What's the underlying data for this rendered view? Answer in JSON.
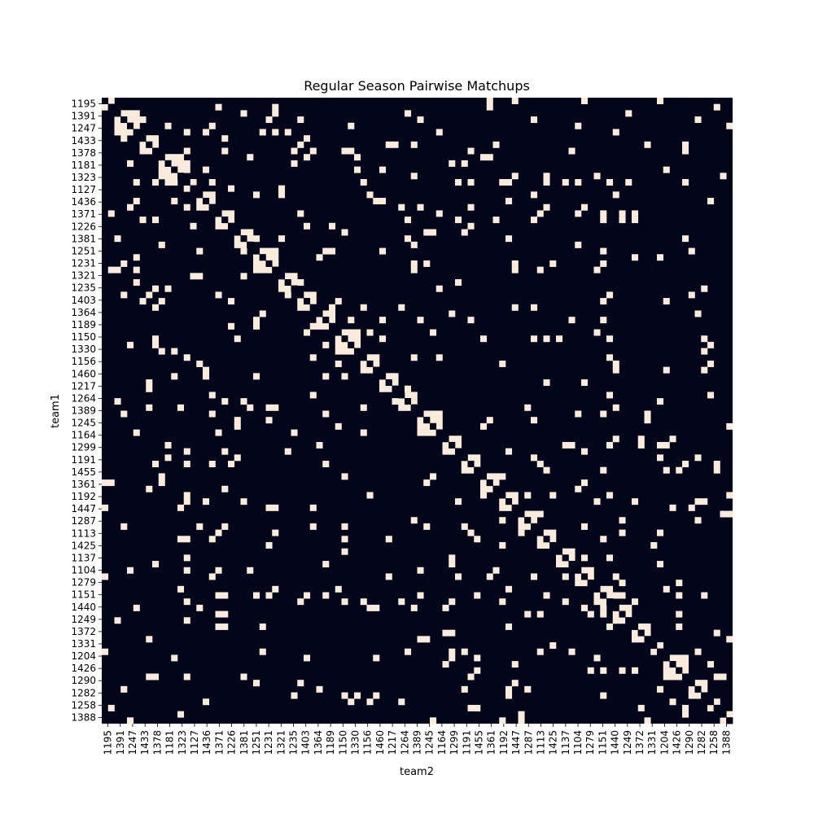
{
  "chart_data": {
    "type": "heatmap",
    "title": "Regular Season Pairwise Matchups",
    "xlabel": "team2",
    "ylabel": "team1",
    "colorbar": false,
    "grid": false,
    "colors": {
      "background": "#03051a",
      "played": "#faebdd",
      "diagonal": "#03051a"
    },
    "tick_labels": [
      "1195",
      "1391",
      "1247",
      "1433",
      "1378",
      "1181",
      "1323",
      "1127",
      "1436",
      "1371",
      "1226",
      "1381",
      "1251",
      "1231",
      "1321",
      "1235",
      "1403",
      "1364",
      "1189",
      "1150",
      "1330",
      "1156",
      "1460",
      "1217",
      "1264",
      "1389",
      "1245",
      "1164",
      "1299",
      "1191",
      "1455",
      "1361",
      "1192",
      "1447",
      "1287",
      "1113",
      "1425",
      "1137",
      "1104",
      "1279",
      "1151",
      "1440",
      "1249",
      "1372",
      "1331",
      "1204",
      "1426",
      "1290",
      "1282",
      "1258",
      "1388"
    ],
    "n_teams": 100,
    "conference_blocks": [
      {
        "start": 0,
        "size": 2
      },
      {
        "start": 2,
        "size": 4
      },
      {
        "start": 6,
        "size": 3
      },
      {
        "start": 9,
        "size": 4
      },
      {
        "start": 13,
        "size": 2
      },
      {
        "start": 15,
        "size": 3
      },
      {
        "start": 18,
        "size": 3
      },
      {
        "start": 21,
        "size": 3
      },
      {
        "start": 24,
        "size": 4
      },
      {
        "start": 28,
        "size": 3
      },
      {
        "start": 31,
        "size": 3
      },
      {
        "start": 34,
        "size": 3
      },
      {
        "start": 37,
        "size": 4
      },
      {
        "start": 41,
        "size": 3
      },
      {
        "start": 44,
        "size": 3
      },
      {
        "start": 47,
        "size": 3
      },
      {
        "start": 50,
        "size": 4
      },
      {
        "start": 54,
        "size": 3
      },
      {
        "start": 57,
        "size": 3
      },
      {
        "start": 60,
        "size": 3
      },
      {
        "start": 63,
        "size": 3
      },
      {
        "start": 66,
        "size": 3
      },
      {
        "start": 69,
        "size": 3
      },
      {
        "start": 72,
        "size": 3
      },
      {
        "start": 75,
        "size": 3
      },
      {
        "start": 78,
        "size": 3
      },
      {
        "start": 81,
        "size": 3
      },
      {
        "start": 84,
        "size": 3
      },
      {
        "start": 87,
        "size": 2
      },
      {
        "start": 89,
        "size": 4
      },
      {
        "start": 93,
        "size": 3
      },
      {
        "start": 96,
        "size": 2
      },
      {
        "start": 98,
        "size": 2
      }
    ],
    "nonconference_density": 0.05
  }
}
